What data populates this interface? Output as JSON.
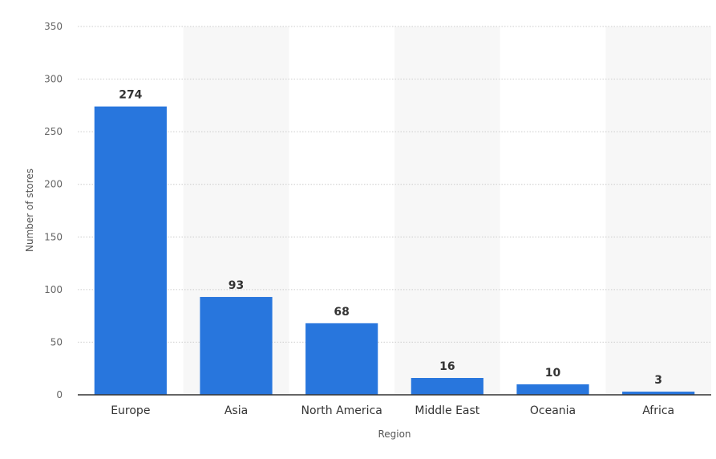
{
  "chart_data": {
    "type": "bar",
    "title": "",
    "xlabel": "Region",
    "ylabel": "Number of stores",
    "categories": [
      "Europe",
      "Asia",
      "North America",
      "Middle East",
      "Oceania",
      "Africa"
    ],
    "values": [
      274,
      93,
      68,
      16,
      10,
      3
    ],
    "value_labels": [
      "274",
      "93",
      "68",
      "16",
      "10",
      "3"
    ],
    "ylim": [
      0,
      350
    ],
    "yticks": [
      0,
      50,
      100,
      150,
      200,
      250,
      300,
      350
    ],
    "ytick_labels": [
      "0",
      "50",
      "100",
      "150",
      "200",
      "250",
      "300",
      "350"
    ],
    "grid": true,
    "legend": "none",
    "bar_color": "#2876dd",
    "band_color": "#f7f7f7",
    "grid_color": "#cccccc",
    "axis_color": "#333333"
  }
}
